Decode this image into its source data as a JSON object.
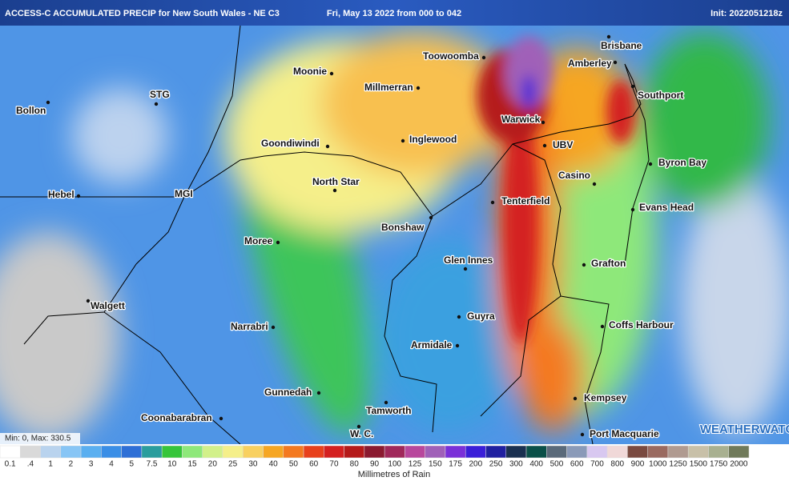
{
  "header": {
    "title": "ACCESS-C ACCUMULATED PRECIP for New South Wales - NE C3",
    "date": "Fri, May 13 2022 from 000 to 042",
    "init": "Init: 2022051218z"
  },
  "places": [
    {
      "label": "Brisbane"
    },
    {
      "label": "Toowoomba"
    },
    {
      "label": "Amberley"
    },
    {
      "label": "Moonie"
    },
    {
      "label": "Millmerran"
    },
    {
      "label": "Southport"
    },
    {
      "label": "STG"
    },
    {
      "label": "Bollon"
    },
    {
      "label": "Warwick"
    },
    {
      "label": "UBV"
    },
    {
      "label": "Inglewood"
    },
    {
      "label": "Goondiwindi"
    },
    {
      "label": "Byron Bay"
    },
    {
      "label": "Casino"
    },
    {
      "label": "North Star"
    },
    {
      "label": "Hebel"
    },
    {
      "label": "MGI"
    },
    {
      "label": "Tenterfield"
    },
    {
      "label": "Evans Head"
    },
    {
      "label": "Bonshaw"
    },
    {
      "label": "Moree"
    },
    {
      "label": "Glen Innes"
    },
    {
      "label": "Grafton"
    },
    {
      "label": "Walgett"
    },
    {
      "label": "Guyra"
    },
    {
      "label": "Coffs Harbour"
    },
    {
      "label": "Narrabri"
    },
    {
      "label": "Armidale"
    },
    {
      "label": "Gunnedah"
    },
    {
      "label": "Kempsey"
    },
    {
      "label": "Tamworth"
    },
    {
      "label": "Coonabarabran"
    },
    {
      "label": "W. C."
    },
    {
      "label": "Port Macquarie"
    }
  ],
  "stats": "Min: 0, Max: 330.5",
  "logo": "WEATHERWATCH",
  "legend": {
    "labels": [
      "0.1",
      ".4",
      "1",
      "2",
      "3",
      "4",
      "5",
      "7.5",
      "10",
      "15",
      "20",
      "25",
      "30",
      "40",
      "50",
      "60",
      "70",
      "80",
      "90",
      "100",
      "125",
      "150",
      "175",
      "200",
      "250",
      "300",
      "400",
      "500",
      "600",
      "700",
      "800",
      "900",
      "1000",
      "1250",
      "1500",
      "1750",
      "2000"
    ],
    "colors": [
      "#ffffff",
      "#d9d9d9",
      "#b9d3ee",
      "#87c5f5",
      "#5aaff0",
      "#3a8ee6",
      "#2e6fd6",
      "#2a9d9d",
      "#36c53a",
      "#8ee87a",
      "#d2f08a",
      "#f5ef8a",
      "#f8d060",
      "#f6a623",
      "#f47920",
      "#e8401c",
      "#d42020",
      "#b51a1a",
      "#8b1a30",
      "#a0285a",
      "#b8479c",
      "#a060b8",
      "#7a30d8",
      "#3a1ed8",
      "#2020a0",
      "#1a3050",
      "#0a5048",
      "#5a6a7a",
      "#8a9ab8",
      "#d8c8f0",
      "#f0d8d8",
      "#7a4a40",
      "#9a6a60",
      "#b09a90",
      "#c8c0a8",
      "#a8b090",
      "#707a5a"
    ]
  },
  "legend_title": "Millimetres of Rain"
}
